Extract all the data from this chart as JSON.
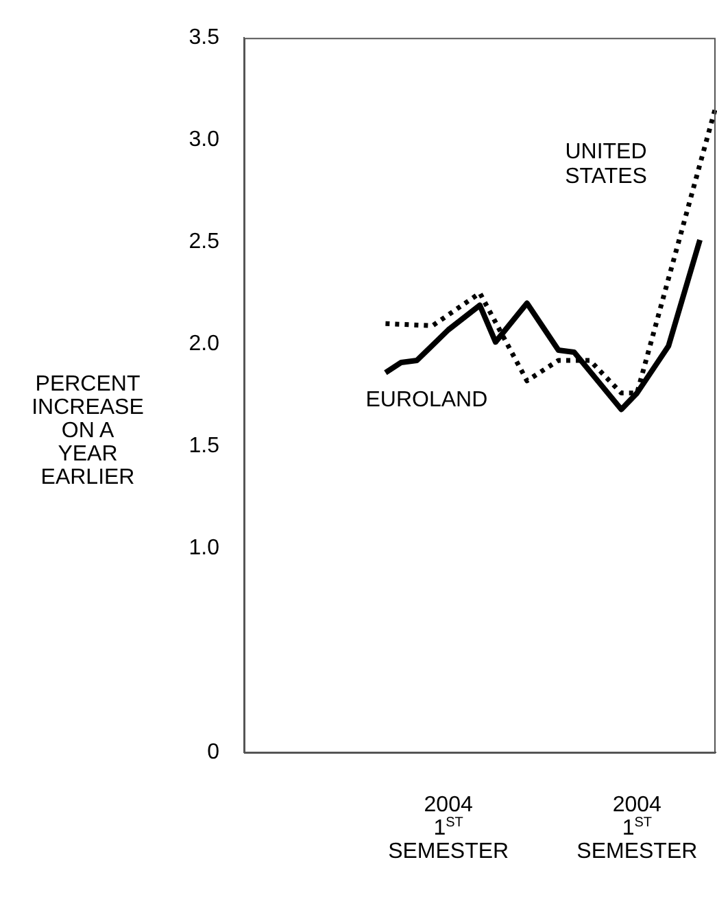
{
  "chart_data": {
    "type": "line",
    "ylabel": "PERCENT\nINCREASE\nON A\nYEAR\nEARLIER",
    "categories": [
      null,
      null,
      null,
      null,
      null,
      null,
      null,
      null,
      null,
      null,
      null,
      null,
      null,
      "2004\n1$^{ST}$\nSEMESTER",
      null,
      null,
      null,
      null,
      null,
      null,
      null,
      null,
      null,
      null,
      null,
      "2004\n1$^{ST}$\nSEMESTER",
      null,
      null,
      null,
      null,
      null
    ],
    "ylim": [
      0,
      3.5
    ],
    "yticks": [
      0,
      {
        "value": 1,
        "label": "1.0"
      },
      {
        "value": 1.5,
        "label": "1.5"
      },
      {
        "value": 2,
        "label": "2.0"
      },
      {
        "value": 2.5,
        "label": "2.5"
      },
      {
        "value": 3,
        "label": "3.0"
      },
      {
        "value": 3.5,
        "label": "3.5"
      }
    ],
    "grid": false,
    "legend": false,
    "marker": "none",
    "series": [
      {
        "name": "EUROLAND",
        "color": "#000000",
        "line_style": "solid",
        "values": [
          null,
          null,
          null,
          null,
          null,
          null,
          null,
          null,
          null,
          1.86,
          1.91,
          1.92,
          null,
          2.07,
          null,
          2.19,
          2.01,
          null,
          2.2,
          null,
          1.97,
          1.96,
          null,
          null,
          1.68,
          1.76,
          null,
          1.99,
          null,
          2.51,
          null
        ]
      },
      {
        "name": "UNITED STATES",
        "color": "#000000",
        "line_style": "dotted",
        "values": [
          null,
          null,
          null,
          null,
          null,
          null,
          null,
          null,
          null,
          2.1,
          null,
          null,
          2.09,
          null,
          null,
          2.25,
          null,
          null,
          1.82,
          null,
          1.92,
          null,
          1.92,
          null,
          1.76,
          1.76,
          null,
          null,
          null,
          null,
          3.16
        ]
      }
    ]
  }
}
